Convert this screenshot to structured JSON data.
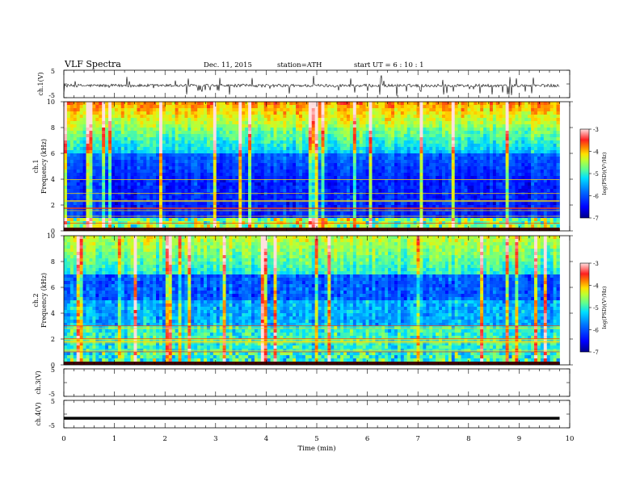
{
  "header": {
    "title": "VLF  Spectra",
    "date": "Dec. 11, 2015",
    "station": "station=ATH",
    "start": "start  UT  =   6  : 10 : 1"
  },
  "chart_data": [
    {
      "type": "line",
      "panel": "ch1-waveform",
      "ylabel": "ch.1(V)",
      "ylim": [
        -5,
        5
      ],
      "y_ticks": [
        "5",
        "-5"
      ],
      "series_color": "#000000",
      "baseline_v": -0.6,
      "x_range_min": [
        0,
        9.8
      ]
    },
    {
      "type": "heatmap",
      "panel": "ch1-spectrogram",
      "ylabel_channel": "ch.1",
      "ylabel": "Frequency  (kHz)",
      "ylim": [
        0,
        10
      ],
      "y_ticks": [
        "0",
        "2",
        "4",
        "6",
        "8",
        "10"
      ],
      "x_range_min": [
        0,
        9.8
      ],
      "colorbar": {
        "label": "log(PSD)(V²/Hz)",
        "range": [
          -7,
          -3
        ],
        "ticks": [
          "-3",
          "-4",
          "-5",
          "-6",
          "-7"
        ],
        "colormap": [
          "#000080",
          "#0000ff",
          "#0080ff",
          "#00ffff",
          "#80ff80",
          "#ffff00",
          "#ff8000",
          "#ff0000",
          "#ffffff"
        ]
      }
    },
    {
      "type": "heatmap",
      "panel": "ch2-spectrogram",
      "ylabel_channel": "ch.2",
      "ylabel": "Frequency  (kHz)",
      "ylim": [
        0,
        10
      ],
      "y_ticks": [
        "0",
        "2",
        "4",
        "6",
        "8",
        "10"
      ],
      "x_range_min": [
        0,
        9.8
      ],
      "colorbar": {
        "label": "log(PSD)(V²/Hz)",
        "range": [
          -7,
          -3
        ],
        "ticks": [
          "-3",
          "-4",
          "-5",
          "-6",
          "-7"
        ],
        "colormap": [
          "#000080",
          "#0000ff",
          "#0080ff",
          "#00ffff",
          "#80ff80",
          "#ffff00",
          "#ff8000",
          "#ff0000",
          "#ffffff"
        ]
      }
    },
    {
      "type": "line",
      "panel": "ch3-waveform",
      "ylabel": "ch.3(V)",
      "ylim": [
        -5,
        5
      ],
      "y_ticks": [
        "5",
        "-5"
      ],
      "values": []
    },
    {
      "type": "line",
      "panel": "ch4-waveform",
      "ylabel": "ch.4(V)",
      "ylim": [
        -5,
        5
      ],
      "y_ticks": [
        "5",
        "-5"
      ],
      "baseline_v": -1.5,
      "x_range_min": [
        0,
        9.8
      ]
    },
    {
      "type": "axis",
      "panel": "time-axis",
      "xlabel": "Time  (min)",
      "xlim": [
        0,
        10
      ],
      "x_ticks": [
        "0",
        "1",
        "2",
        "3",
        "4",
        "5",
        "6",
        "7",
        "8",
        "9",
        "10"
      ]
    }
  ]
}
